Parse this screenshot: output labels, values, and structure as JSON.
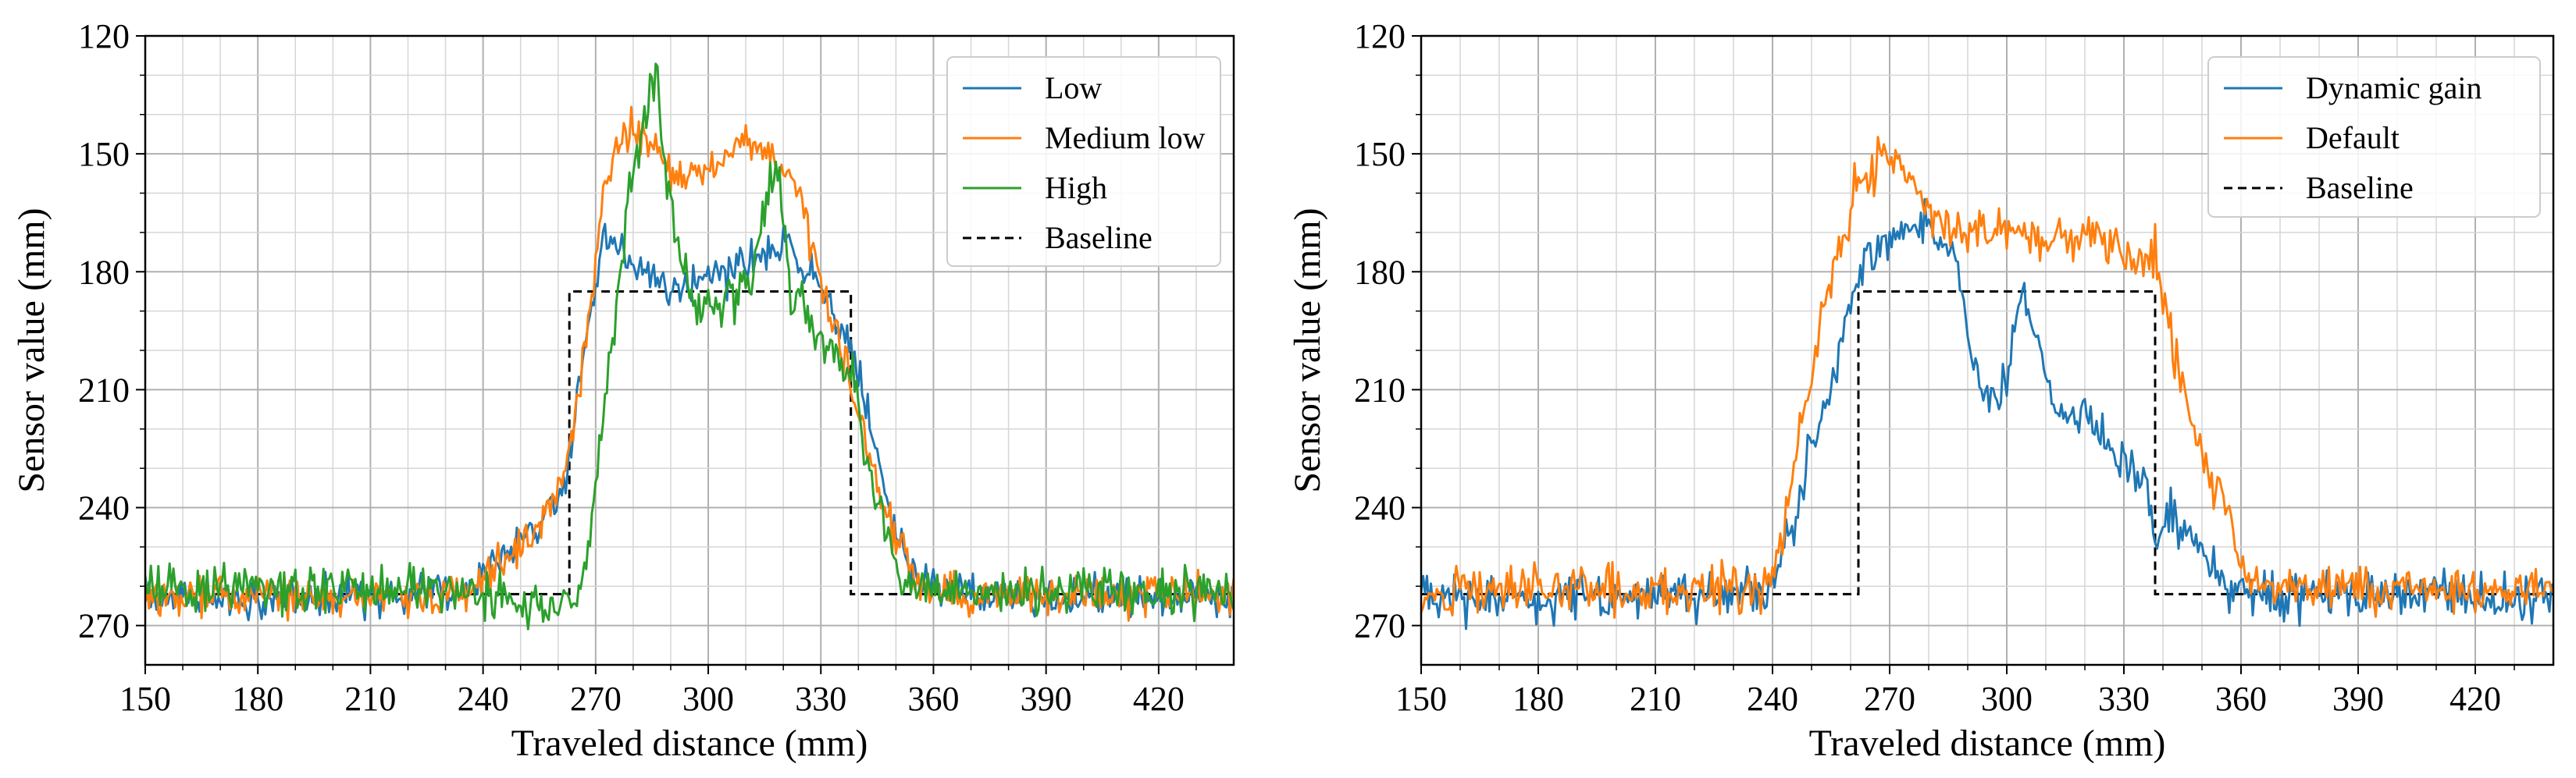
{
  "chart_data": [
    {
      "type": "line",
      "xlabel": "Traveled distance (mm)",
      "ylabel": "Sensor value (mm)",
      "xlim": [
        150,
        440
      ],
      "ylim": [
        280,
        120
      ],
      "y_inverted": true,
      "grid": true,
      "legend_position": "top-right",
      "xticks": [
        150,
        180,
        210,
        240,
        270,
        300,
        330,
        360,
        390,
        420
      ],
      "yticks": [
        120,
        150,
        180,
        210,
        240,
        270
      ],
      "baseline": {
        "name": "Baseline",
        "color": "#000000",
        "dash": true,
        "x": [
          150,
          263,
          263,
          338,
          338,
          440
        ],
        "y": [
          262,
          262,
          185,
          185,
          262,
          262
        ]
      },
      "series": [
        {
          "name": "Low",
          "color": "#1f77b4",
          "noise": 2.5,
          "x": [
            150,
            200,
            235,
            245,
            255,
            262,
            268,
            272,
            280,
            290,
            300,
            310,
            320,
            330,
            338,
            342,
            350,
            356,
            362,
            380,
            440
          ],
          "y": [
            263,
            263,
            261,
            252,
            245,
            232,
            195,
            171,
            178,
            185,
            182,
            178,
            173,
            185,
            200,
            215,
            248,
            258,
            262,
            263,
            263
          ]
        },
        {
          "name": "Medium low",
          "color": "#ff7f0e",
          "noise": 2.5,
          "x": [
            150,
            200,
            235,
            245,
            255,
            262,
            268,
            272,
            278,
            284,
            290,
            300,
            305,
            310,
            318,
            324,
            330,
            336,
            342,
            350,
            356,
            362,
            380,
            440
          ],
          "y": [
            262,
            263,
            262,
            255,
            245,
            232,
            195,
            160,
            145,
            145,
            155,
            155,
            150,
            146,
            152,
            160,
            183,
            200,
            225,
            250,
            258,
            262,
            262,
            262
          ]
        },
        {
          "name": "High",
          "color": "#2ca02c",
          "noise": 3,
          "x": [
            150,
            220,
            240,
            250,
            258,
            264,
            268,
            272,
            276,
            280,
            284,
            286,
            288,
            292,
            298,
            305,
            312,
            318,
            322,
            330,
            338,
            344,
            350,
            356,
            362,
            380,
            440
          ],
          "y": [
            260,
            261,
            262,
            263,
            266,
            264,
            250,
            215,
            185,
            155,
            140,
            125,
            150,
            175,
            190,
            188,
            180,
            150,
            185,
            198,
            205,
            235,
            255,
            260,
            261,
            261,
            261
          ]
        }
      ]
    },
    {
      "type": "line",
      "xlabel": "Traveled distance (mm)",
      "ylabel": "Sensor value (mm)",
      "xlim": [
        150,
        440
      ],
      "ylim": [
        280,
        120
      ],
      "y_inverted": true,
      "grid": true,
      "legend_position": "top-right",
      "xticks": [
        150,
        180,
        210,
        240,
        270,
        300,
        330,
        360,
        390,
        420
      ],
      "yticks": [
        120,
        150,
        180,
        210,
        240,
        270
      ],
      "baseline": {
        "name": "Baseline",
        "color": "#000000",
        "dash": true,
        "x": [
          150,
          262,
          262,
          338,
          338,
          440
        ],
        "y": [
          262,
          262,
          185,
          185,
          262,
          262
        ]
      },
      "series": [
        {
          "name": "Dynamic gain",
          "color": "#1f77b4",
          "noise": 3,
          "x": [
            150,
            200,
            238,
            241,
            245,
            250,
            256,
            262,
            270,
            280,
            288,
            292,
            296,
            300,
            304,
            308,
            312,
            320,
            330,
            335,
            338,
            342,
            350,
            356,
            362,
            380,
            440
          ],
          "y": [
            263,
            263,
            262,
            258,
            245,
            225,
            205,
            180,
            172,
            168,
            180,
            205,
            212,
            208,
            182,
            198,
            215,
            218,
            228,
            232,
            250,
            240,
            252,
            260,
            262,
            262,
            263
          ]
        },
        {
          "name": "Default",
          "color": "#ff7f0e",
          "noise": 3,
          "x": [
            150,
            200,
            238,
            242,
            246,
            252,
            260,
            268,
            274,
            280,
            290,
            300,
            310,
            320,
            330,
            336,
            338,
            342,
            348,
            352,
            356,
            358,
            362,
            380,
            440
          ],
          "y": [
            261,
            261,
            261,
            252,
            225,
            195,
            162,
            150,
            155,
            165,
            172,
            168,
            172,
            170,
            175,
            178,
            175,
            198,
            220,
            232,
            238,
            247,
            259,
            261,
            261
          ]
        }
      ]
    }
  ]
}
